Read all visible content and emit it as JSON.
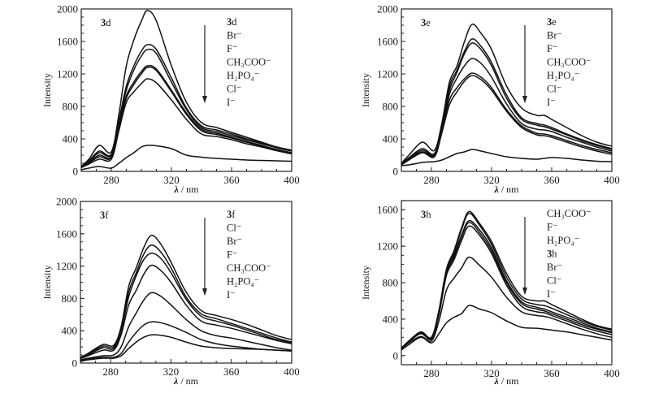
{
  "chart_data": [
    {
      "type": "line",
      "panel_label": "3d",
      "title": "",
      "xlabel": "λ / nm",
      "ylabel": "Intensity",
      "xlim": [
        260,
        400
      ],
      "ylim": [
        0,
        2000
      ],
      "xticks": [
        280,
        320,
        360,
        400
      ],
      "yticks": [
        0,
        400,
        800,
        1200,
        1600,
        2000
      ],
      "legend_title": "3d",
      "legend": [
        "Br⁻",
        "F⁻",
        "CH₃COO⁻",
        "H₂PO₄⁻",
        "Cl⁻",
        "I⁻"
      ],
      "legend_placement": "top-right",
      "arrow": "down",
      "x": [
        260,
        265,
        272,
        280,
        285,
        290,
        295,
        300,
        304,
        310,
        320,
        330,
        340,
        350,
        360,
        370,
        380,
        390,
        400
      ],
      "series": [
        {
          "name": "3d",
          "values": [
            60,
            150,
            320,
            240,
            700,
            1300,
            1620,
            1850,
            1980,
            1850,
            1300,
            850,
            600,
            540,
            480,
            420,
            360,
            300,
            260
          ]
        },
        {
          "name": "Br⁻",
          "values": [
            60,
            130,
            250,
            210,
            620,
            1050,
            1300,
            1480,
            1560,
            1500,
            1150,
            780,
            560,
            510,
            460,
            400,
            350,
            300,
            260
          ]
        },
        {
          "name": "F⁻",
          "values": [
            55,
            120,
            230,
            200,
            600,
            1000,
            1250,
            1420,
            1500,
            1450,
            1100,
            760,
            540,
            490,
            440,
            390,
            340,
            290,
            250
          ]
        },
        {
          "name": "CH₃COO⁻",
          "values": [
            55,
            110,
            200,
            180,
            560,
            930,
            1100,
            1230,
            1300,
            1260,
            1000,
            720,
            520,
            470,
            420,
            370,
            320,
            270,
            230
          ]
        },
        {
          "name": "H₂PO₄⁻",
          "values": [
            50,
            100,
            180,
            170,
            540,
            900,
            1070,
            1200,
            1280,
            1240,
            980,
            700,
            500,
            455,
            410,
            360,
            310,
            265,
            225
          ]
        },
        {
          "name": "Cl⁻",
          "values": [
            45,
            90,
            150,
            150,
            500,
            850,
            980,
            1080,
            1140,
            1090,
            880,
            640,
            460,
            430,
            390,
            340,
            300,
            255,
            215
          ]
        },
        {
          "name": "I⁻",
          "values": [
            20,
            40,
            60,
            40,
            100,
            170,
            230,
            300,
            320,
            315,
            280,
            200,
            175,
            160,
            150,
            140,
            135,
            130,
            125
          ]
        }
      ]
    },
    {
      "type": "line",
      "panel_label": "3e",
      "title": "",
      "xlabel": "λ / nm",
      "ylabel": "Intensity",
      "xlim": [
        260,
        400
      ],
      "ylim": [
        0,
        2000
      ],
      "xticks": [
        280,
        320,
        360,
        400
      ],
      "yticks": [
        0,
        400,
        800,
        1200,
        1600,
        2000
      ],
      "legend_title": "3e",
      "legend": [
        "Br⁻",
        "F⁻",
        "CH₃COO⁻",
        "H₂PO₄⁻",
        "Cl⁻",
        "I⁻"
      ],
      "legend_placement": "top-right",
      "arrow": "down",
      "x": [
        260,
        265,
        274,
        282,
        287,
        292,
        297,
        302,
        307,
        313,
        320,
        330,
        340,
        350,
        355,
        360,
        370,
        380,
        390,
        400
      ],
      "series": [
        {
          "name": "3e",
          "values": [
            100,
            200,
            360,
            260,
            600,
            1100,
            1300,
            1600,
            1810,
            1700,
            1500,
            1050,
            780,
            690,
            690,
            640,
            540,
            440,
            360,
            310
          ]
        },
        {
          "name": "Br⁻",
          "values": [
            90,
            170,
            280,
            220,
            560,
            1050,
            1250,
            1480,
            1630,
            1540,
            1340,
            940,
            660,
            590,
            570,
            540,
            460,
            390,
            330,
            280
          ]
        },
        {
          "name": "F⁻",
          "values": [
            85,
            160,
            260,
            210,
            540,
            1000,
            1220,
            1450,
            1580,
            1500,
            1300,
            900,
            640,
            570,
            550,
            520,
            450,
            380,
            320,
            270
          ]
        },
        {
          "name": "CH₃COO⁻",
          "values": [
            80,
            150,
            240,
            200,
            520,
            950,
            1150,
            1300,
            1390,
            1330,
            1160,
            830,
            590,
            520,
            510,
            490,
            420,
            360,
            300,
            250
          ]
        },
        {
          "name": "H₂PO₄⁻",
          "values": [
            80,
            150,
            240,
            190,
            500,
            880,
            1030,
            1140,
            1210,
            1160,
            1030,
            760,
            560,
            470,
            460,
            440,
            380,
            320,
            270,
            230
          ]
        },
        {
          "name": "Cl⁻",
          "values": [
            75,
            140,
            230,
            180,
            480,
            820,
            980,
            1110,
            1180,
            1130,
            1000,
            740,
            540,
            450,
            440,
            420,
            360,
            300,
            250,
            210
          ]
        },
        {
          "name": "I⁻",
          "values": [
            70,
            80,
            110,
            120,
            140,
            180,
            220,
            240,
            270,
            250,
            220,
            180,
            160,
            150,
            160,
            170,
            160,
            140,
            125,
            120
          ]
        }
      ]
    },
    {
      "type": "line",
      "panel_label": "3f",
      "title": "",
      "xlabel": "λ / nm",
      "ylabel": "Intensity",
      "xlim": [
        260,
        400
      ],
      "ylim": [
        0,
        2000
      ],
      "xticks": [
        280,
        320,
        360,
        400
      ],
      "yticks": [
        0,
        400,
        800,
        1200,
        1600,
        2000
      ],
      "legend_title": "3f",
      "legend": [
        "Cl⁻",
        "Br⁻",
        "F⁻",
        "CH₃COO⁻",
        "H₂PO₄⁻",
        "I⁻"
      ],
      "legend_placement": "top-right",
      "arrow": "down",
      "x": [
        260,
        265,
        275,
        282,
        287,
        292,
        297,
        302,
        307,
        313,
        320,
        330,
        340,
        350,
        360,
        370,
        380,
        390,
        400
      ],
      "series": [
        {
          "name": "3f",
          "values": [
            70,
            120,
            230,
            220,
            450,
            950,
            1180,
            1430,
            1580,
            1480,
            1250,
            880,
            650,
            590,
            540,
            480,
            410,
            340,
            290
          ]
        },
        {
          "name": "Cl⁻",
          "values": [
            65,
            110,
            210,
            200,
            420,
            880,
            1120,
            1350,
            1460,
            1380,
            1180,
            820,
            610,
            550,
            490,
            430,
            370,
            310,
            260
          ]
        },
        {
          "name": "Br⁻",
          "values": [
            60,
            100,
            190,
            180,
            400,
            820,
            1080,
            1280,
            1360,
            1300,
            1120,
            790,
            580,
            520,
            470,
            410,
            350,
            290,
            250
          ]
        },
        {
          "name": "F⁻",
          "values": [
            55,
            90,
            160,
            160,
            350,
            720,
            900,
            1100,
            1210,
            1150,
            1000,
            720,
            520,
            470,
            430,
            380,
            330,
            280,
            240
          ]
        },
        {
          "name": "CH₃COO⁻",
          "values": [
            40,
            60,
            90,
            100,
            200,
            450,
            620,
            780,
            870,
            830,
            720,
            540,
            400,
            340,
            310,
            270,
            230,
            190,
            160
          ]
        },
        {
          "name": "H₂PO₄⁻",
          "values": [
            30,
            50,
            70,
            70,
            120,
            260,
            380,
            470,
            510,
            500,
            460,
            380,
            290,
            240,
            210,
            190,
            170,
            160,
            150
          ]
        },
        {
          "name": "I⁻",
          "values": [
            20,
            40,
            60,
            60,
            90,
            180,
            260,
            320,
            350,
            345,
            320,
            260,
            210,
            190,
            180,
            175,
            170,
            160,
            150
          ]
        }
      ]
    },
    {
      "type": "line",
      "panel_label": "3h",
      "title": "",
      "xlabel": "λ / nm",
      "ylabel": "Intensity",
      "xlim": [
        260,
        400
      ],
      "ylim": [
        -100,
        1700
      ],
      "xticks": [
        280,
        320,
        360,
        400
      ],
      "yticks": [
        0,
        400,
        800,
        1200,
        1600
      ],
      "legend_title": "",
      "legend": [
        "CH₃COO⁻",
        "F⁻",
        "H₂PO₄⁻",
        "3h",
        "Br⁻",
        "Cl⁻",
        "I⁻"
      ],
      "legend_placement": "top-right",
      "arrow": "down",
      "x": [
        260,
        265,
        273,
        280,
        285,
        290,
        295,
        300,
        305,
        312,
        320,
        330,
        340,
        350,
        355,
        360,
        370,
        380,
        390,
        400
      ],
      "series": [
        {
          "name": "CH₃COO⁻",
          "values": [
            80,
            160,
            260,
            200,
            500,
            950,
            1150,
            1400,
            1580,
            1450,
            1250,
            900,
            650,
            600,
            600,
            560,
            480,
            400,
            330,
            290
          ]
        },
        {
          "name": "F⁻",
          "values": [
            80,
            160,
            260,
            200,
            490,
            940,
            1130,
            1380,
            1560,
            1430,
            1220,
            860,
            620,
            560,
            550,
            520,
            450,
            380,
            320,
            280
          ]
        },
        {
          "name": "H₂PO₄⁻",
          "values": [
            80,
            160,
            250,
            190,
            480,
            920,
            1100,
            1320,
            1480,
            1380,
            1180,
            820,
            590,
            530,
            510,
            480,
            420,
            360,
            300,
            260
          ]
        },
        {
          "name": "3h",
          "values": [
            80,
            155,
            250,
            190,
            470,
            900,
            1080,
            1300,
            1460,
            1350,
            1150,
            800,
            570,
            510,
            490,
            460,
            400,
            340,
            290,
            250
          ]
        },
        {
          "name": "Br⁻",
          "values": [
            75,
            150,
            240,
            180,
            450,
            880,
            1050,
            1260,
            1420,
            1320,
            1120,
            770,
            540,
            480,
            470,
            440,
            380,
            320,
            270,
            230
          ]
        },
        {
          "name": "Cl⁻",
          "values": [
            70,
            140,
            210,
            160,
            380,
            720,
            850,
            960,
            1080,
            990,
            860,
            640,
            480,
            440,
            430,
            410,
            350,
            290,
            240,
            200
          ]
        },
        {
          "name": "I⁻",
          "values": [
            60,
            120,
            200,
            140,
            240,
            360,
            420,
            460,
            550,
            510,
            470,
            380,
            310,
            300,
            290,
            280,
            260,
            230,
            200,
            170
          ]
        }
      ]
    }
  ]
}
